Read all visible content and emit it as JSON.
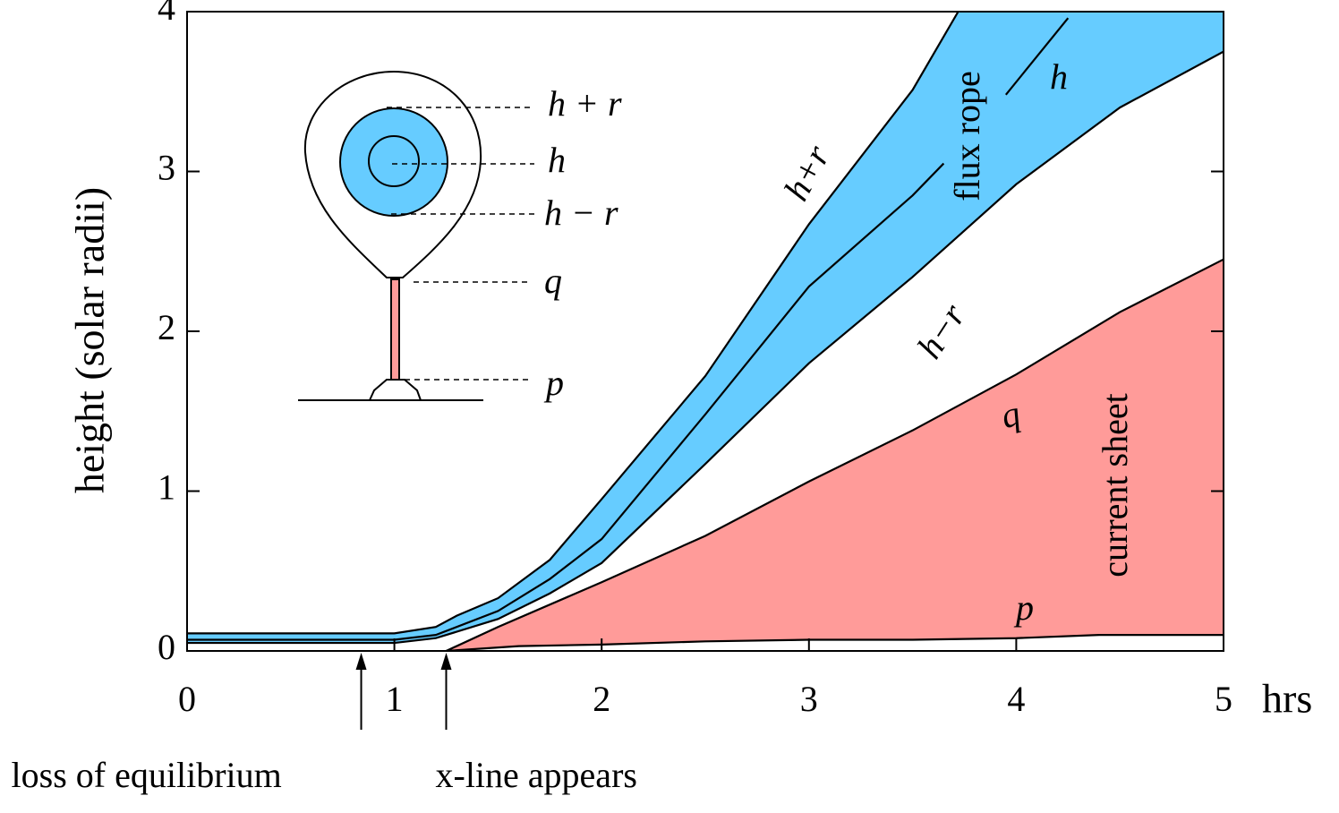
{
  "chart_data": {
    "type": "line",
    "xlabel": "hrs",
    "ylabel": "height (solar radii)",
    "xlim": [
      0,
      5
    ],
    "ylim": [
      0,
      4
    ],
    "xticks": [
      0,
      1,
      2,
      3,
      4,
      5
    ],
    "yticks": [
      0,
      1,
      2,
      3,
      4
    ],
    "series": [
      {
        "name": "h+r",
        "color": "#000000",
        "x": [
          0,
          0.5,
          1,
          1.2,
          1.3,
          1.5,
          1.75,
          2,
          2.5,
          3,
          3.5,
          3.72
        ],
        "values": [
          0.11,
          0.11,
          0.11,
          0.15,
          0.22,
          0.33,
          0.57,
          0.95,
          1.72,
          2.67,
          3.51,
          4
        ]
      },
      {
        "name": "h",
        "color": "#000000",
        "x": [
          0,
          0.5,
          1,
          1.2,
          1.5,
          1.75,
          2,
          2.5,
          3,
          3.5,
          3.65,
          3.8,
          3.95,
          4.25
        ],
        "values": [
          0.07,
          0.07,
          0.07,
          0.1,
          0.25,
          0.45,
          0.7,
          1.48,
          2.28,
          2.85,
          3.05,
          null,
          3.48,
          3.96
        ]
      },
      {
        "name": "h−r",
        "color": "#000000",
        "x": [
          0,
          0.5,
          1,
          1.2,
          1.5,
          1.75,
          2,
          2.5,
          3,
          3.5,
          4,
          4.5,
          5
        ],
        "values": [
          0.05,
          0.05,
          0.05,
          0.08,
          0.2,
          0.36,
          0.55,
          1.17,
          1.8,
          2.34,
          2.92,
          3.4,
          3.75
        ]
      },
      {
        "name": "q",
        "color": "#000000",
        "x": [
          1.25,
          1.5,
          2,
          2.5,
          3,
          3.5,
          4,
          4.5,
          5
        ],
        "values": [
          0,
          0.15,
          0.43,
          0.72,
          1.06,
          1.38,
          1.73,
          2.12,
          2.45
        ]
      },
      {
        "name": "p",
        "color": "#000000",
        "x": [
          1.25,
          1.6,
          2,
          2.5,
          3,
          3.5,
          4,
          4.4,
          5
        ],
        "values": [
          0,
          0.03,
          0.04,
          0.06,
          0.07,
          0.07,
          0.08,
          0.1,
          0.1
        ]
      }
    ],
    "regions": [
      {
        "name": "flux rope",
        "color": "#66ccff"
      },
      {
        "name": "current sheet",
        "color": "#ff9b99"
      }
    ],
    "annotations": [
      {
        "text": "loss of equilibrium",
        "x": 0.84
      },
      {
        "text": "x-line appears",
        "x": 1.25
      }
    ],
    "inset": {
      "labels": [
        "h + r",
        "h",
        "h − r",
        "q",
        "p"
      ]
    }
  }
}
